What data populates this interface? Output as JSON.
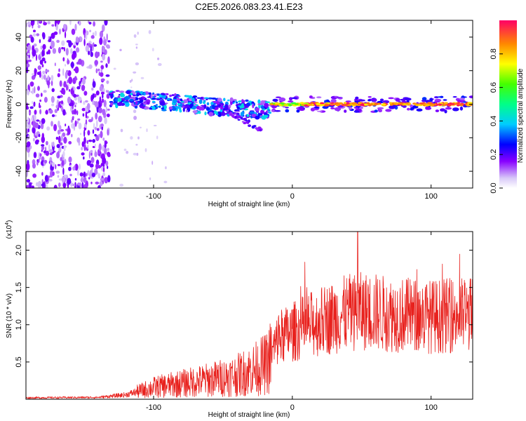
{
  "figure_title": "C2E5.2026.083.23.41.E23",
  "chart_data": [
    {
      "type": "heatmap",
      "title": "C2E5.2026.083.23.41.E23",
      "xlabel": "Height of straight line (km)",
      "ylabel": "Frequency (Hz)",
      "xlim": [
        -192,
        130
      ],
      "ylim": [
        -50,
        50
      ],
      "xticks": [
        -100,
        0,
        100
      ],
      "yticks": [
        -40,
        -20,
        0,
        20,
        40
      ],
      "xtick_labels": [
        "-100",
        "0",
        "100"
      ],
      "ytick_labels": [
        "-40",
        "-20",
        "0",
        "20",
        "40"
      ],
      "colorbar": {
        "label": "Normalized spectral amplitude",
        "range": [
          0,
          1
        ],
        "ticks": [
          0.0,
          0.2,
          0.4,
          0.6,
          0.8
        ],
        "tick_labels": [
          "0.0",
          "0.2",
          "0.4",
          "0.6",
          "0.8"
        ]
      },
      "features": [
        {
          "name": "broadband noise",
          "x_range": [
            -192,
            -130
          ],
          "freq_range": [
            -50,
            50
          ],
          "amplitude": 0.15
        },
        {
          "name": "scattered echo band",
          "x_range": [
            -132,
            -15
          ],
          "freq_center": [
            4,
            -4
          ],
          "amplitude": 0.35
        },
        {
          "name": "descending branch",
          "x_range": [
            -55,
            -22
          ],
          "freq_range": [
            0,
            -16
          ],
          "amplitude": 0.2
        },
        {
          "name": "steady tone",
          "x_range": [
            -15,
            130
          ],
          "freq_center": 0,
          "amplitude": 0.9
        }
      ]
    },
    {
      "type": "line",
      "title": "",
      "xlabel": "Height of straight line (km)",
      "ylabel": "SNR (10 * v/v)",
      "scale_label": "(x10",
      "scale_exp": "4",
      "scale_close": ")",
      "xlim": [
        -192,
        130
      ],
      "ylim": [
        0,
        22500
      ],
      "xticks": [
        -100,
        0,
        100
      ],
      "yticks": [
        5000,
        10000,
        15000,
        20000
      ],
      "xtick_labels": [
        "-100",
        "0",
        "100"
      ],
      "ytick_labels": [
        "0.5",
        "1.0",
        "1.5",
        "2.0"
      ],
      "color": "#e8211d",
      "series": [
        {
          "name": "SNR",
          "trend_x": [
            -192,
            -140,
            -120,
            -100,
            -80,
            -60,
            -40,
            -25,
            -18,
            -10,
            0,
            10,
            20,
            30,
            40,
            50,
            60,
            70,
            80,
            90,
            100,
            110,
            120,
            130
          ],
          "trend_y": [
            200,
            250,
            600,
            1600,
            2100,
            2600,
            3200,
            4200,
            4800,
            8200,
            9000,
            9800,
            10400,
            11000,
            11600,
            11800,
            11700,
            11400,
            11300,
            11200,
            11100,
            11200,
            11300,
            11400
          ],
          "peak": {
            "x": 47,
            "y": 22500
          }
        }
      ]
    }
  ]
}
